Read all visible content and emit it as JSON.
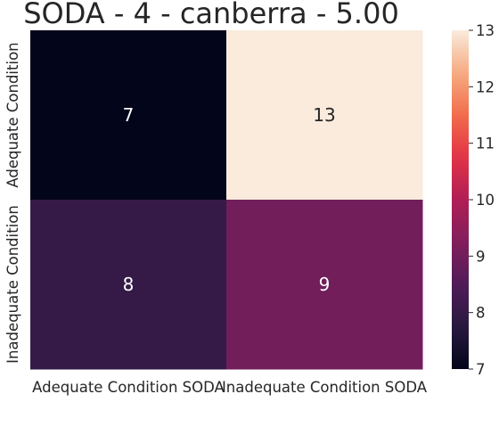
{
  "chart_data": {
    "type": "heatmap",
    "title": "SODA - 4 - canberra - 5.00",
    "xlabel": "",
    "ylabel": "",
    "x_categories": [
      "Adequate Condition SODA",
      "Inadequate Condition SODA"
    ],
    "y_categories": [
      "Adequate Condition",
      "Inadequate Condition"
    ],
    "values": [
      [
        7,
        13
      ],
      [
        8,
        9
      ]
    ],
    "colorbar": {
      "min": 7,
      "max": 13,
      "ticks": [
        7,
        8,
        9,
        10,
        11,
        12,
        13
      ],
      "colormap": "rocket"
    },
    "grid": false
  },
  "colors": {
    "low": "#03051a",
    "high": "#faebdd",
    "annotation": "#ffffff"
  }
}
